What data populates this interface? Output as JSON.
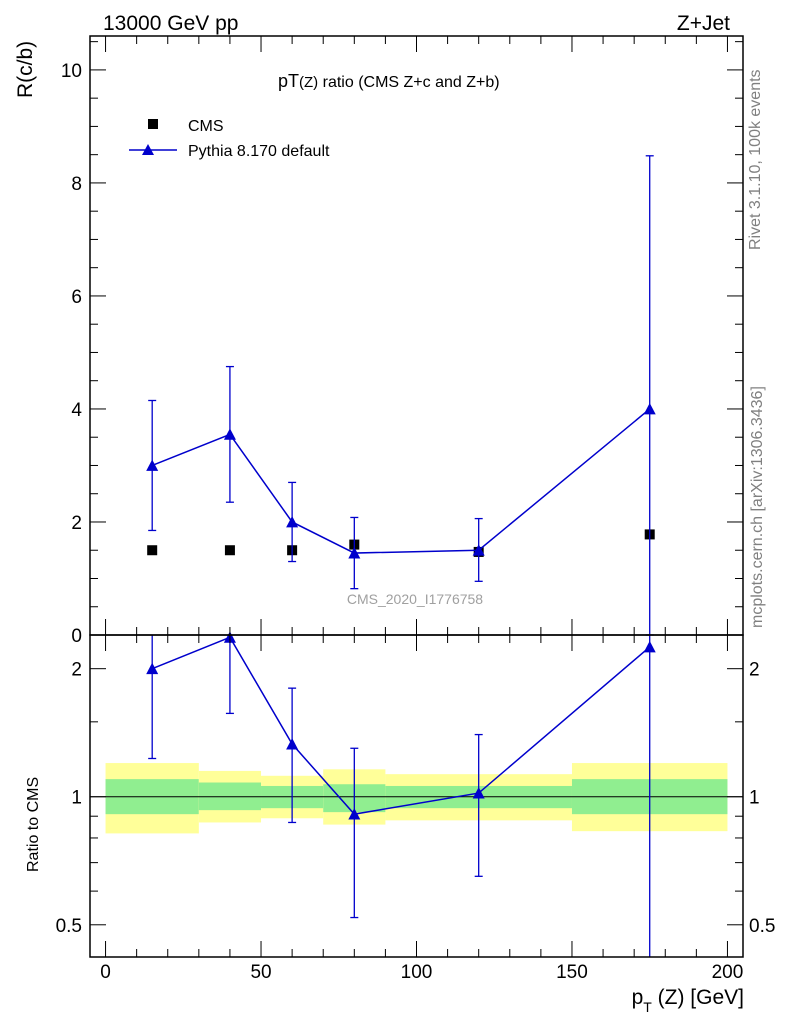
{
  "header": {
    "energy_label": "13000 GeV pp",
    "process_label": "Z+Jet",
    "side_label_top": "Rivet 3.1.10,  100k events",
    "side_label_bottom": "mcplots.cern.ch [arXiv:1306.3436]",
    "watermark": "CMS_2020_I1776758"
  },
  "plot_title": {
    "prefix": "pT",
    "sub": "(Z)",
    "suffix": " ratio (CMS  Z+c and Z+b)"
  },
  "legend": {
    "cms_label": "CMS",
    "mc_label": "Pythia 8.170 default"
  },
  "colors": {
    "mc_line": "#0000cc",
    "data_marker": "#000000",
    "band_inner": "#90ee90",
    "band_outer": "#ffff99"
  },
  "axes": {
    "top_ylabel": "R(c/b)",
    "bottom_ylabel": "Ratio to CMS",
    "xlabel_main": "p",
    "xlabel_sub": "T",
    "xlabel_rest": " (Z) [GeV]",
    "top_yticks": [
      "0",
      "2",
      "4",
      "6",
      "8",
      "10"
    ],
    "bottom_yticks": [
      "0.5",
      "1",
      "2"
    ],
    "xticks": [
      "0",
      "50",
      "100",
      "150",
      "200"
    ]
  },
  "chart_data": [
    {
      "type": "scatter",
      "panel": "main",
      "title": "pT(Z) ratio (CMS  Z+c and Z+b)",
      "xlabel": "pT (Z) [GeV]",
      "ylabel": "R(c/b)",
      "xlim": [
        -5,
        205
      ],
      "ylim": [
        0,
        10.6
      ],
      "series": [
        {
          "name": "CMS",
          "marker": "square",
          "points": [
            {
              "x": 15,
              "xlo": 0,
              "xhi": 30,
              "y": 1.5,
              "ylo": 1.5,
              "yhi": 1.5
            },
            {
              "x": 40,
              "xlo": 30,
              "xhi": 50,
              "y": 1.5,
              "ylo": 1.5,
              "yhi": 1.5
            },
            {
              "x": 60,
              "xlo": 50,
              "xhi": 70,
              "y": 1.5,
              "ylo": 1.5,
              "yhi": 1.5
            },
            {
              "x": 80,
              "xlo": 70,
              "xhi": 90,
              "y": 1.6,
              "ylo": 1.6,
              "yhi": 1.6
            },
            {
              "x": 120,
              "xlo": 90,
              "xhi": 150,
              "y": 1.47,
              "ylo": 1.47,
              "yhi": 1.47
            },
            {
              "x": 175,
              "xlo": 150,
              "xhi": 200,
              "y": 1.78,
              "ylo": 1.78,
              "yhi": 1.78
            }
          ]
        },
        {
          "name": "Pythia 8.170 default",
          "marker": "triangle",
          "points": [
            {
              "x": 15,
              "y": 3.0,
              "ylo": 1.85,
              "yhi": 4.15
            },
            {
              "x": 40,
              "y": 3.55,
              "ylo": 2.35,
              "yhi": 4.75
            },
            {
              "x": 60,
              "y": 2.0,
              "ylo": 1.3,
              "yhi": 2.7
            },
            {
              "x": 80,
              "y": 1.45,
              "ylo": 0.82,
              "yhi": 2.08
            },
            {
              "x": 120,
              "y": 1.5,
              "ylo": 0.95,
              "yhi": 2.06
            },
            {
              "x": 175,
              "y": 4.0,
              "ylo": 0.0,
              "yhi": 8.48
            }
          ]
        }
      ]
    },
    {
      "type": "scatter",
      "panel": "ratio",
      "ylabel": "Ratio to CMS",
      "yscale": "log",
      "ylim": [
        0.42,
        2.4
      ],
      "bands": [
        {
          "xlo": 0,
          "xhi": 30,
          "inner": [
            0.91,
            1.1
          ],
          "outer": [
            0.82,
            1.2
          ]
        },
        {
          "xlo": 30,
          "xhi": 50,
          "inner": [
            0.93,
            1.08
          ],
          "outer": [
            0.87,
            1.15
          ]
        },
        {
          "xlo": 50,
          "xhi": 70,
          "inner": [
            0.94,
            1.06
          ],
          "outer": [
            0.89,
            1.12
          ]
        },
        {
          "xlo": 70,
          "xhi": 90,
          "inner": [
            0.92,
            1.07
          ],
          "outer": [
            0.86,
            1.16
          ]
        },
        {
          "xlo": 90,
          "xhi": 150,
          "inner": [
            0.94,
            1.06
          ],
          "outer": [
            0.88,
            1.13
          ]
        },
        {
          "xlo": 150,
          "xhi": 200,
          "inner": [
            0.91,
            1.1
          ],
          "outer": [
            0.83,
            1.2
          ]
        }
      ],
      "series": [
        {
          "name": "Pythia 8.170 default",
          "points": [
            {
              "x": 15,
              "y": 2.0,
              "ylo": 1.23,
              "yhi": 2.4
            },
            {
              "x": 40,
              "y": 2.37,
              "ylo": 1.57,
              "yhi": 2.4
            },
            {
              "x": 60,
              "y": 1.33,
              "ylo": 0.87,
              "yhi": 1.8
            },
            {
              "x": 80,
              "y": 0.91,
              "ylo": 0.52,
              "yhi": 1.3
            },
            {
              "x": 120,
              "y": 1.02,
              "ylo": 0.65,
              "yhi": 1.4
            },
            {
              "x": 175,
              "y": 2.25,
              "ylo": 0.3,
              "yhi": 2.4
            }
          ]
        }
      ]
    }
  ]
}
